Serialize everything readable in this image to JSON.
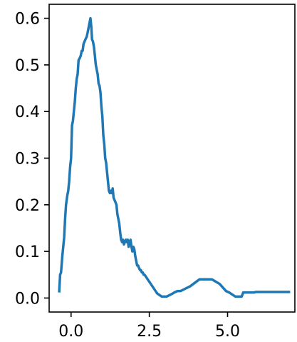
{
  "chart_data": {
    "type": "line",
    "title": "",
    "xlabel": "",
    "ylabel": "",
    "xlim": [
      -0.7,
      7.15
    ],
    "ylim": [
      -0.03,
      0.63
    ],
    "grid": false,
    "x_ticks": [
      0.0,
      2.5,
      5.0
    ],
    "x_tick_labels": [
      "0.0",
      "2.5",
      "5.0"
    ],
    "y_ticks": [
      0.0,
      0.1,
      0.2,
      0.3,
      0.4,
      0.5,
      0.6
    ],
    "y_tick_labels": [
      "0.0",
      "0.1",
      "0.2",
      "0.3",
      "0.4",
      "0.5",
      "0.6"
    ],
    "series": [
      {
        "color": "#1f77b4",
        "x": [
          -0.38,
          -0.35,
          -0.32,
          -0.28,
          -0.25,
          -0.22,
          -0.19,
          -0.16,
          -0.12,
          -0.09,
          -0.06,
          -0.03,
          0.0,
          0.03,
          0.06,
          0.09,
          0.12,
          0.15,
          0.18,
          0.21,
          0.24,
          0.28,
          0.31,
          0.34,
          0.37,
          0.4,
          0.43,
          0.46,
          0.5,
          0.53,
          0.56,
          0.59,
          0.62,
          0.65,
          0.67,
          0.7,
          0.73,
          0.76,
          0.79,
          0.82,
          0.85,
          0.88,
          0.91,
          0.94,
          0.97,
          1.0,
          1.03,
          1.06,
          1.09,
          1.12,
          1.15,
          1.18,
          1.21,
          1.24,
          1.27,
          1.3,
          1.33,
          1.36,
          1.39,
          1.42,
          1.45,
          1.48,
          1.51,
          1.54,
          1.57,
          1.6,
          1.63,
          1.66,
          1.69,
          1.72,
          1.75,
          1.78,
          1.81,
          1.84,
          1.87,
          1.9,
          1.93,
          1.96,
          1.99,
          2.02,
          2.05,
          2.08,
          2.11,
          2.14,
          2.17,
          2.2,
          2.23,
          2.26,
          2.29,
          2.32,
          2.35,
          2.45,
          2.55,
          2.65,
          2.75,
          2.9,
          3.05,
          3.2,
          3.3,
          3.4,
          3.5,
          3.8,
          3.9,
          4.1,
          4.3,
          4.5,
          4.75,
          4.95,
          5.05,
          5.25,
          5.45,
          5.5,
          5.85,
          5.9,
          6.1,
          6.6,
          7.0
        ],
        "y": [
          0.012,
          0.05,
          0.055,
          0.09,
          0.11,
          0.13,
          0.17,
          0.2,
          0.22,
          0.23,
          0.25,
          0.28,
          0.3,
          0.37,
          0.38,
          0.4,
          0.42,
          0.45,
          0.47,
          0.48,
          0.51,
          0.515,
          0.52,
          0.53,
          0.53,
          0.545,
          0.55,
          0.555,
          0.56,
          0.57,
          0.58,
          0.59,
          0.6,
          0.58,
          0.555,
          0.55,
          0.54,
          0.52,
          0.5,
          0.49,
          0.48,
          0.46,
          0.455,
          0.44,
          0.41,
          0.39,
          0.35,
          0.33,
          0.3,
          0.29,
          0.27,
          0.25,
          0.23,
          0.225,
          0.23,
          0.225,
          0.235,
          0.215,
          0.21,
          0.205,
          0.2,
          0.18,
          0.17,
          0.16,
          0.14,
          0.125,
          0.12,
          0.125,
          0.115,
          0.12,
          0.125,
          0.12,
          0.125,
          0.11,
          0.12,
          0.125,
          0.11,
          0.1,
          0.11,
          0.105,
          0.09,
          0.08,
          0.07,
          0.07,
          0.065,
          0.06,
          0.06,
          0.055,
          0.055,
          0.05,
          0.05,
          0.04,
          0.03,
          0.02,
          0.01,
          0.003,
          0.003,
          0.008,
          0.012,
          0.015,
          0.015,
          0.025,
          0.03,
          0.04,
          0.04,
          0.04,
          0.03,
          0.015,
          0.012,
          0.003,
          0.003,
          0.012,
          0.012,
          0.013,
          0.013,
          0.013,
          0.013
        ]
      }
    ]
  }
}
